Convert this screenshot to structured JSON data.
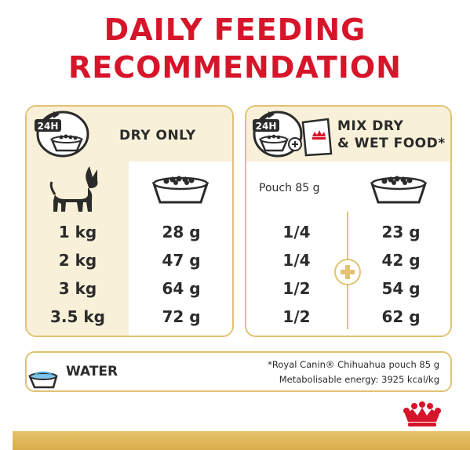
{
  "title": {
    "line1": "DAILY FEEDING",
    "line2": "RECOMMENDATION"
  },
  "left_panel": {
    "badge": "24H",
    "heading": "DRY ONLY",
    "rows": [
      {
        "weight": "1 kg",
        "dry": "28 g"
      },
      {
        "weight": "2 kg",
        "dry": "47 g"
      },
      {
        "weight": "3 kg",
        "dry": "64 g"
      },
      {
        "weight": "3.5 kg",
        "dry": "72 g"
      }
    ]
  },
  "right_panel": {
    "badge": "24H",
    "heading_line1": "MIX DRY",
    "heading_line2": "& WET FOOD*",
    "pouch_label": "Pouch 85 g",
    "rows": [
      {
        "pouch": "1/4",
        "dry": "23 g"
      },
      {
        "pouch": "1/4",
        "dry": "42 g"
      },
      {
        "pouch": "1/2",
        "dry": "54 g"
      },
      {
        "pouch": "1/2",
        "dry": "62 g"
      }
    ]
  },
  "water": {
    "label": "WATER",
    "footnote_line1": "*Royal Canin® Chihuahua pouch 85 g",
    "footnote_line2": "Metabolisable energy: 3925 kcal/kg"
  },
  "colors": {
    "brand_red": "#d6152a",
    "gold": "#e2c272",
    "cream": "#f8f0d8",
    "text": "#2b2b2b"
  },
  "icons": [
    "clock-24h-icon",
    "food-bowl-icon",
    "chihuahua-dog-icon",
    "pouch-icon",
    "plus-icon",
    "water-bowl-icon",
    "royal-canin-crown-icon"
  ]
}
